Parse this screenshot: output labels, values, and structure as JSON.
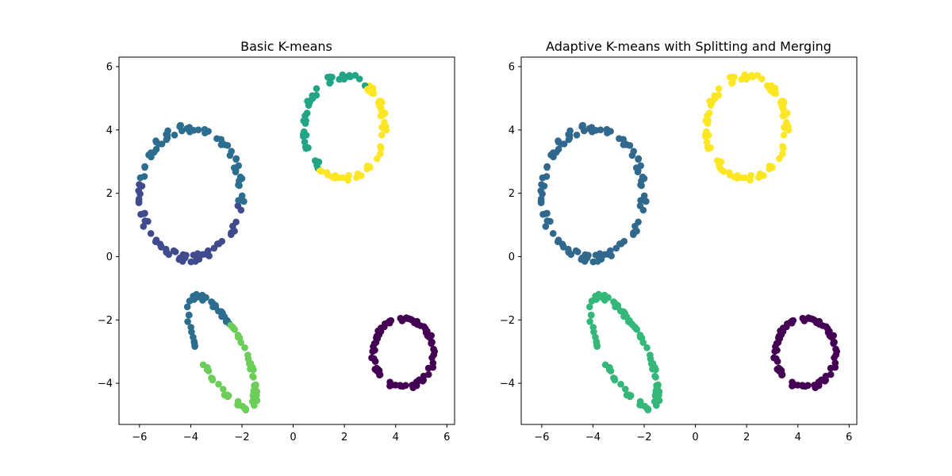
{
  "chart_data": [
    {
      "type": "scatter",
      "title": "Basic K-means",
      "xlabel": "",
      "ylabel": "",
      "xlim": [
        -6.8,
        6.3
      ],
      "ylim": [
        -5.3,
        6.3
      ],
      "xticks": [
        -6,
        -4,
        -2,
        0,
        2,
        4,
        6
      ],
      "yticks": [
        -4,
        -2,
        0,
        2,
        4,
        6
      ],
      "grid": false,
      "rings": [
        {
          "cx": -4.0,
          "cy": 2.0,
          "rx": 2.0,
          "ry": 2.05,
          "rot": 0,
          "n": 110,
          "seed": 11,
          "clusters": [
            {
              "from": 170,
              "to": 350,
              "color": "#3f4b8c"
            },
            {
              "from": 350,
              "to": 530,
              "color": "#2c6e8f"
            }
          ]
        },
        {
          "cx": 2.0,
          "cy": 4.1,
          "rx": 1.55,
          "ry": 1.6,
          "rot": 0,
          "n": 95,
          "seed": 23,
          "clusters": [
            {
              "from": 55,
              "to": 235,
              "color": "#21a585"
            },
            {
              "from": 235,
              "to": 415,
              "color": "#fde725"
            }
          ]
        },
        {
          "cx": -2.8,
          "cy": -3.0,
          "rx": 2.05,
          "ry": 0.78,
          "rot": -55,
          "n": 95,
          "seed": 37,
          "clusters": [
            {
              "from": 70,
              "to": 210,
              "color": "#2c6e8f"
            },
            {
              "from": 210,
              "to": 430,
              "color": "#6ccd59"
            }
          ]
        },
        {
          "cx": 4.3,
          "cy": -3.05,
          "rx": 1.18,
          "ry": 1.08,
          "rot": 0,
          "n": 85,
          "seed": 53,
          "clusters": [
            {
              "from": 0,
              "to": 360,
              "color": "#440154"
            }
          ]
        }
      ]
    },
    {
      "type": "scatter",
      "title": "Adaptive K-means with Splitting and Merging",
      "xlabel": "",
      "ylabel": "",
      "xlim": [
        -6.8,
        6.3
      ],
      "ylim": [
        -5.3,
        6.3
      ],
      "xticks": [
        -6,
        -4,
        -2,
        0,
        2,
        4,
        6
      ],
      "yticks": [
        -4,
        -2,
        0,
        2,
        4,
        6
      ],
      "grid": false,
      "rings": [
        {
          "cx": -4.0,
          "cy": 2.0,
          "rx": 2.0,
          "ry": 2.05,
          "rot": 0,
          "n": 110,
          "seed": 11,
          "clusters": [
            {
              "from": 0,
              "to": 360,
              "color": "#31688e"
            }
          ]
        },
        {
          "cx": 2.0,
          "cy": 4.1,
          "rx": 1.55,
          "ry": 1.6,
          "rot": 0,
          "n": 95,
          "seed": 23,
          "clusters": [
            {
              "from": 0,
              "to": 360,
              "color": "#fde725"
            }
          ]
        },
        {
          "cx": -2.8,
          "cy": -3.0,
          "rx": 2.05,
          "ry": 0.78,
          "rot": -55,
          "n": 95,
          "seed": 37,
          "clusters": [
            {
              "from": 0,
              "to": 360,
              "color": "#35b779"
            }
          ]
        },
        {
          "cx": 4.3,
          "cy": -3.05,
          "rx": 1.18,
          "ry": 1.08,
          "rot": 0,
          "n": 85,
          "seed": 53,
          "clusters": [
            {
              "from": 0,
              "to": 360,
              "color": "#440154"
            }
          ]
        }
      ]
    }
  ]
}
